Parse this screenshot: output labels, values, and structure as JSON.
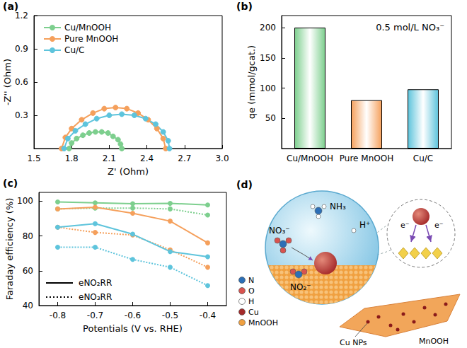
{
  "chart_data": [
    {
      "panel": "(a)",
      "type": "line",
      "x_label": "Z' (Ohm)",
      "y_label": "-Z'' (Ohm)",
      "xlim": [
        1.5,
        3.0
      ],
      "xticks": [
        1.5,
        1.8,
        2.1,
        2.4,
        2.7,
        {
          "value": 3,
          "label": "3.0"
        }
      ],
      "ylim": [
        0,
        1.2
      ],
      "yticks": [
        0.3,
        0.6,
        0.9,
        1.2
      ],
      "legend": "upper left",
      "marker": "circle",
      "series": [
        {
          "name": "Cu/MnOOH",
          "color": "#7dcf8e",
          "x": [
            1.78,
            1.8,
            1.84,
            1.89,
            1.94,
            1.99,
            2.04,
            2.09,
            2.13,
            2.17,
            2.19,
            2.2
          ],
          "values": [
            0.0,
            0.05,
            0.09,
            0.12,
            0.14,
            0.15,
            0.15,
            0.14,
            0.11,
            0.08,
            0.04,
            0.0
          ]
        },
        {
          "name": "Pure MnOOH",
          "color": "#f5a05c",
          "x": [
            1.72,
            1.75,
            1.8,
            1.88,
            1.97,
            2.06,
            2.15,
            2.24,
            2.33,
            2.41,
            2.48,
            2.53,
            2.55
          ],
          "values": [
            0.0,
            0.1,
            0.18,
            0.26,
            0.32,
            0.36,
            0.37,
            0.36,
            0.32,
            0.26,
            0.18,
            0.09,
            0.0
          ]
        },
        {
          "name": "Cu/C",
          "color": "#5ec4dc",
          "x": [
            1.74,
            1.77,
            1.83,
            1.91,
            2.0,
            2.1,
            2.2,
            2.3,
            2.39,
            2.47,
            2.53,
            2.57,
            2.58
          ],
          "values": [
            0.0,
            0.09,
            0.16,
            0.22,
            0.27,
            0.3,
            0.31,
            0.3,
            0.27,
            0.22,
            0.15,
            0.07,
            0.0
          ]
        }
      ]
    },
    {
      "panel": "(b)",
      "type": "bar",
      "y_label": "qe (mmol/gcat.)",
      "annotation": "0.5 mol/L NO₃⁻",
      "categories": [
        "Cu/MnOOH",
        "Pure MnOOH",
        "Cu/C"
      ],
      "values": [
        200,
        80,
        98
      ],
      "colors": [
        "#7dcf8e",
        "#f5a05c",
        "#5ec4dc"
      ],
      "ylim": [
        0,
        220
      ],
      "yticks": [
        50,
        100,
        150,
        200
      ]
    },
    {
      "panel": "(c)",
      "type": "line",
      "x_label": "Potentials (V vs. RHE)",
      "y_label": "Faraday efficiency (%)",
      "x": [
        -0.8,
        -0.7,
        -0.6,
        -0.5,
        -0.4
      ],
      "xlim": [
        -0.85,
        -0.35
      ],
      "xticks": [
        -0.8,
        -0.7,
        -0.6,
        -0.5,
        -0.4
      ],
      "ylim": [
        40,
        105
      ],
      "yticks": [
        40,
        60,
        80,
        100
      ],
      "legend": "lower left",
      "marker": "circle",
      "series": [
        {
          "name": "eNO₂RR",
          "line_style": "solid",
          "color": "#7dcf8e",
          "values": [
            99.5,
            99,
            98.5,
            98.7,
            97.8
          ]
        },
        {
          "name": "eNO₃RR",
          "line_style": "dotted",
          "color": "#7dcf8e",
          "values": [
            95.5,
            96,
            96,
            95.5,
            92
          ]
        },
        {
          "name": "eNO₂RR",
          "line_style": "solid",
          "color": "#f5a05c",
          "values": [
            95.5,
            96.5,
            93,
            88.5,
            76
          ]
        },
        {
          "name": "eNO₃RR",
          "line_style": "dotted",
          "color": "#f5a05c",
          "values": [
            85,
            82,
            80.5,
            72,
            62
          ]
        },
        {
          "name": "eNO₂RR",
          "line_style": "solid",
          "color": "#5ec4dc",
          "values": [
            85,
            87,
            81,
            71,
            68
          ]
        },
        {
          "name": "eNO₃RR",
          "line_style": "dotted",
          "color": "#5ec4dc",
          "values": [
            73.5,
            73.5,
            66.5,
            62,
            51.5
          ]
        }
      ]
    }
  ],
  "diagram": {
    "panel": "(d)",
    "molecules": {
      "nitrate": "NO₃⁻",
      "nitrite": "NO₂⁻",
      "ammonia": "NH₃",
      "proton": "H⁺"
    },
    "electrons": [
      "e⁻",
      "e⁻"
    ],
    "key": [
      {
        "label": "N",
        "color": "#2c6fb7"
      },
      {
        "label": "O",
        "color": "#d9534f"
      },
      {
        "label": "H",
        "color": "#ffffff"
      },
      {
        "label": "Cu",
        "color": "#a52a2a"
      },
      {
        "label": "MnOOH",
        "color": "#f0a040"
      }
    ],
    "sheet_labels": {
      "particles": "Cu NPs",
      "support": "MnOOH"
    }
  }
}
